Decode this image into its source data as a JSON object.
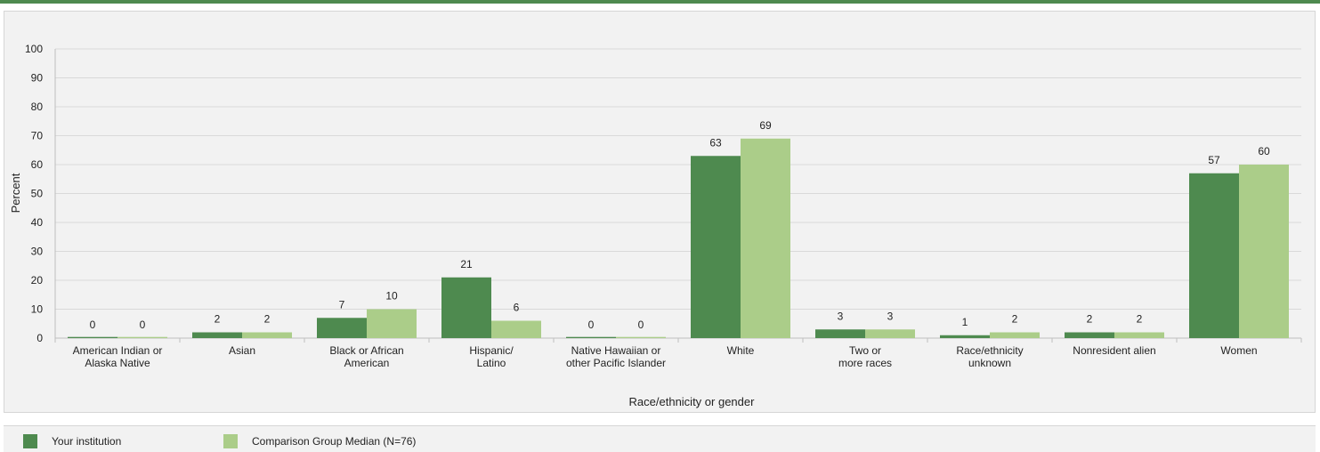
{
  "colors": {
    "accent_bar": "#4e8a4f",
    "series_1": "#4e8a4f",
    "series_2": "#abcd89",
    "grid": "#d9d9d9",
    "panel_bg": "#f2f2f2"
  },
  "legend": {
    "items": [
      {
        "label": "Your institution",
        "color": "#4e8a4f"
      },
      {
        "label": "Comparison Group Median (N=76)",
        "color": "#abcd89"
      }
    ]
  },
  "chart_data": {
    "type": "bar",
    "categories": [
      [
        "American Indian or",
        "Alaska Native"
      ],
      [
        "Asian"
      ],
      [
        "Black or African",
        "American"
      ],
      [
        "Hispanic/",
        "Latino"
      ],
      [
        "Native Hawaiian or",
        "other Pacific Islander"
      ],
      [
        "White"
      ],
      [
        "Two or",
        "more races"
      ],
      [
        "Race/ethnicity",
        "unknown"
      ],
      [
        "Nonresident alien"
      ],
      [
        "Women"
      ]
    ],
    "series": [
      {
        "name": "Your institution",
        "values": [
          0,
          2,
          7,
          21,
          0,
          63,
          3,
          1,
          2,
          57
        ],
        "draw": [
          0.4,
          2,
          7,
          21,
          0.4,
          63,
          3,
          1,
          2,
          57
        ]
      },
      {
        "name": "Comparison Group Median (N=76)",
        "values": [
          0,
          2,
          10,
          6,
          0,
          69,
          3,
          2,
          2,
          60
        ],
        "draw": [
          0.4,
          2,
          10,
          6,
          0.4,
          69,
          3,
          2,
          2,
          60
        ]
      }
    ],
    "xlabel": "Race/ethnicity or gender",
    "ylabel": "Percent",
    "ylim": [
      0,
      100
    ],
    "yticks": [
      0,
      10,
      20,
      30,
      40,
      50,
      60,
      70,
      80,
      90,
      100
    ],
    "grid": true,
    "legend_position": "bottom-left"
  }
}
